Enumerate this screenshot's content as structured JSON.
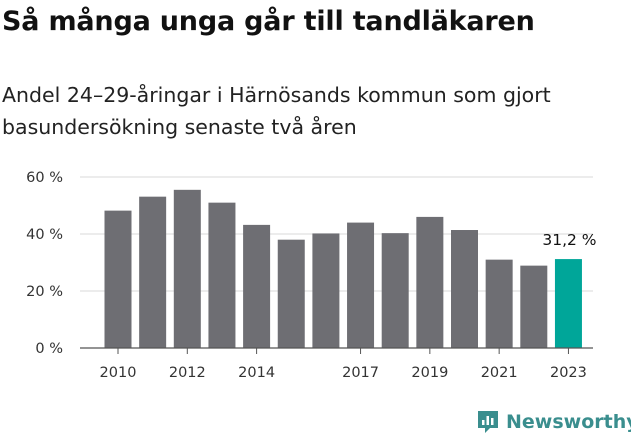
{
  "header": {
    "title": "Så många unga går till tandläkaren",
    "subtitle": "Andel 24–29-åringar i Härnösands kommun som gjort basundersökning senaste två åren"
  },
  "brand": {
    "name": "Newsworthy",
    "icon": "newsworthy-logo-icon",
    "color": "#3a8e8e"
  },
  "chart_data": {
    "type": "bar",
    "title": "Så många unga går till tandläkaren",
    "subtitle": "Andel 24–29-åringar i Härnösands kommun som gjort basundersökning senaste två åren",
    "x": [
      2010,
      2011,
      2012,
      2013,
      2014,
      2015,
      2016,
      2017,
      2018,
      2019,
      2020,
      2021,
      2022,
      2023
    ],
    "values": [
      48.2,
      53.1,
      55.5,
      51.0,
      43.2,
      38.0,
      40.2,
      44.0,
      40.3,
      46.0,
      41.4,
      31.0,
      28.9,
      31.2
    ],
    "x_tick_labels": [
      "2010",
      "2012",
      "2014",
      "2017",
      "2019",
      "2021",
      "2023"
    ],
    "x_tick_years": [
      2010,
      2012,
      2014,
      2017,
      2019,
      2021,
      2023
    ],
    "y_ticks": [
      0,
      20,
      40,
      60
    ],
    "y_tick_labels": [
      "0 %",
      "20 %",
      "40 %",
      "60 %"
    ],
    "ylim": [
      0,
      60
    ],
    "highlight_index": 13,
    "highlight_label": "31,2 %",
    "colors": {
      "bar": "#6e6e73",
      "highlight": "#00a699",
      "grid": "#d9d9d9",
      "axis": "#555555"
    },
    "grid": true,
    "legend": "none"
  }
}
